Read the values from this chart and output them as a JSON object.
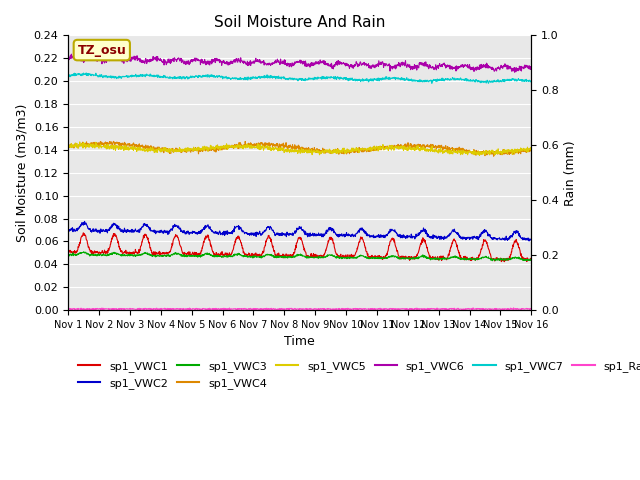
{
  "title": "Soil Moisture And Rain",
  "xlabel": "Time",
  "ylabel_left": "Soil Moisture (m3/m3)",
  "ylabel_right": "Rain (mm)",
  "xlim_days": [
    0,
    15
  ],
  "ylim_left": [
    0.0,
    0.24
  ],
  "ylim_right": [
    0.0,
    1.0
  ],
  "x_ticks": [
    "Nov 1",
    "Nov 2",
    "Nov 3",
    "Nov 4",
    "Nov 5",
    "Nov 6",
    "Nov 7",
    "Nov 8",
    "Nov 9",
    "Nov 10",
    "Nov 11",
    "Nov 12",
    "Nov 13",
    "Nov 14",
    "Nov 15",
    "Nov 16"
  ],
  "annotation_text": "TZ_osu",
  "annotation_bg": "#ffffcc",
  "annotation_border": "#bbaa00",
  "bg_color": "#e8e8e8",
  "series_colors": {
    "sp1_VWC1": "#dd0000",
    "sp1_VWC2": "#0000cc",
    "sp1_VWC3": "#00aa00",
    "sp1_VWC4": "#dd8800",
    "sp1_VWC5": "#ddcc00",
    "sp1_VWC6": "#aa00aa",
    "sp1_VWC7": "#00cccc",
    "sp1_Rain": "#ff44cc"
  }
}
